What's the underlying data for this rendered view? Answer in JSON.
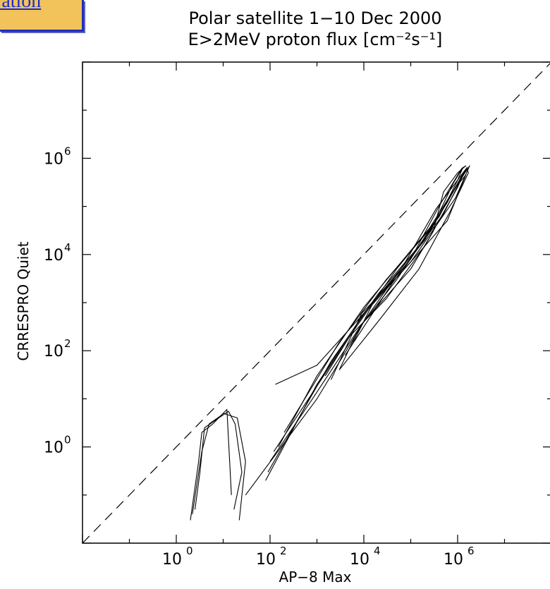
{
  "nav": {
    "link_text": "ration"
  },
  "chart_data": {
    "type": "line",
    "title": "Polar satellite 1−10 Dec 2000",
    "subtitle": "E>2MeV proton flux [cm⁻²s⁻¹]",
    "xlabel": "AP−8 Max",
    "ylabel": "CRRESPRO Quiet",
    "x_scale": "log",
    "y_scale": "log",
    "xlim": [
      0.01,
      100000000
    ],
    "ylim": [
      0.01,
      100000000
    ],
    "x_ticks": [
      {
        "label_base": "10",
        "label_exp": "0",
        "value": 1
      },
      {
        "label_base": "10",
        "label_exp": "2",
        "value": 100
      },
      {
        "label_base": "10",
        "label_exp": "4",
        "value": 10000
      },
      {
        "label_base": "10",
        "label_exp": "6",
        "value": 1000000
      }
    ],
    "y_ticks": [
      {
        "label_base": "10",
        "label_exp": "0",
        "value": 1
      },
      {
        "label_base": "10",
        "label_exp": "2",
        "value": 100
      },
      {
        "label_base": "10",
        "label_exp": "4",
        "value": 10000
      },
      {
        "label_base": "10",
        "label_exp": "6",
        "value": 1000000
      }
    ],
    "grid": false,
    "reference_line": {
      "style": "dashed",
      "x": [
        0.01,
        100000000
      ],
      "y": [
        0.01,
        100000000
      ]
    },
    "series": [
      {
        "x": [
          2,
          3,
          3.5,
          6,
          10,
          20,
          30,
          22
        ],
        "y": [
          0.03,
          0.5,
          2,
          3,
          5,
          4,
          0.5,
          0.03
        ]
      },
      {
        "x": [
          2.5,
          3.2,
          4,
          8,
          13,
          18,
          25,
          17
        ],
        "y": [
          0.05,
          0.3,
          2.5,
          4,
          5.5,
          3,
          0.3,
          0.05
        ]
      },
      {
        "x": [
          2.2,
          3.5,
          5,
          9,
          12,
          15
        ],
        "y": [
          0.04,
          0.8,
          3,
          4.5,
          6,
          0.1
        ]
      },
      {
        "x": [
          30,
          1000,
          10000,
          100000,
          300000,
          500000,
          1000000,
          1500000,
          1200000,
          400000,
          100000,
          10000,
          1000,
          130
        ],
        "y": [
          0.1,
          10,
          400,
          5000,
          30000,
          200000,
          500000,
          700000,
          600000,
          100000,
          8000,
          600,
          50,
          20
        ]
      },
      {
        "x": [
          150,
          1000,
          10000,
          100000,
          400000,
          1000000,
          1300000,
          800000,
          300000,
          50000,
          8000,
          3000
        ],
        "y": [
          1,
          30,
          800,
          12000,
          60000,
          350000,
          650000,
          300000,
          40000,
          3000,
          300,
          40
        ]
      },
      {
        "x": [
          80,
          1000,
          10000,
          200000,
          800000,
          1600000,
          1700000,
          700000,
          150000,
          20000,
          3000
        ],
        "y": [
          0.2,
          20,
          600,
          20000,
          200000,
          600000,
          500000,
          80000,
          5000,
          400,
          40
        ]
      },
      {
        "x": [
          90,
          2000,
          20000,
          150000,
          600000,
          1400000,
          1000000,
          200000,
          30000,
          5000,
          1500
        ],
        "y": [
          0.3,
          60,
          1500,
          15000,
          120000,
          550000,
          250000,
          15000,
          1200,
          200,
          30
        ]
      },
      {
        "x": [
          200,
          3000,
          30000,
          300000,
          1000000,
          1800000,
          900000,
          100000,
          15000,
          6000
        ],
        "y": [
          2,
          150,
          3000,
          40000,
          300000,
          700000,
          150000,
          7000,
          900,
          150
        ]
      },
      {
        "x": [
          120,
          5000,
          50000,
          250000,
          900000,
          1500000,
          600000,
          60000,
          9000,
          2000
        ],
        "y": [
          0.8,
          200,
          5000,
          35000,
          250000,
          450000,
          50000,
          4000,
          600,
          25
        ]
      },
      {
        "x": [
          100,
          800,
          8000,
          70000,
          350000,
          1100000,
          1600000,
          500000,
          40000,
          4000
        ],
        "y": [
          0.5,
          10,
          300,
          6000,
          90000,
          400000,
          650000,
          70000,
          2500,
          80
        ]
      }
    ]
  }
}
